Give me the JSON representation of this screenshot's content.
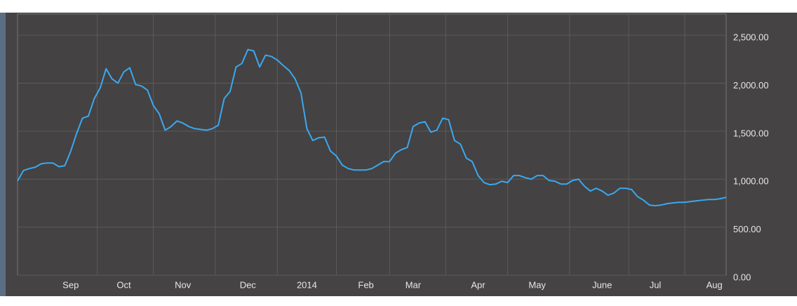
{
  "chart_data": {
    "type": "line",
    "categories": [
      null,
      null,
      null,
      null,
      null,
      null,
      null,
      null,
      null,
      "Sep",
      null,
      null,
      null,
      null,
      null,
      null,
      null,
      null,
      "Oct",
      null,
      null,
      null,
      null,
      null,
      null,
      null,
      null,
      null,
      "Nov",
      null,
      null,
      null,
      null,
      null,
      null,
      null,
      null,
      null,
      null,
      "Dec",
      null,
      null,
      null,
      null,
      null,
      null,
      null,
      null,
      null,
      "2014",
      null,
      null,
      null,
      null,
      null,
      null,
      null,
      null,
      null,
      "Feb",
      null,
      null,
      null,
      null,
      null,
      null,
      null,
      "Mar",
      null,
      null,
      null,
      null,
      null,
      null,
      null,
      null,
      null,
      null,
      "Apr",
      null,
      null,
      null,
      null,
      null,
      null,
      null,
      null,
      null,
      "May",
      null,
      null,
      null,
      null,
      null,
      null,
      null,
      null,
      null,
      null,
      "June",
      null,
      null,
      null,
      null,
      null,
      null,
      null,
      null,
      "Jul",
      null,
      null,
      null,
      null,
      null,
      null,
      null,
      null,
      null,
      "Aug",
      null,
      null
    ],
    "values": [
      980,
      1090,
      1110,
      1124,
      1160,
      1168,
      1168,
      1130,
      1140,
      1290,
      1475,
      1635,
      1657,
      1840,
      1950,
      2150,
      2045,
      2000,
      2117,
      2160,
      1985,
      1970,
      1927,
      1767,
      1680,
      1510,
      1548,
      1606,
      1584,
      1548,
      1526,
      1518,
      1510,
      1526,
      1562,
      1840,
      1913,
      2168,
      2205,
      2350,
      2336,
      2168,
      2292,
      2278,
      2240,
      2183,
      2132,
      2045,
      1898,
      1526,
      1402,
      1431,
      1438,
      1292,
      1241,
      1146,
      1110,
      1095,
      1095,
      1095,
      1110,
      1146,
      1183,
      1183,
      1270,
      1307,
      1329,
      1548,
      1584,
      1598,
      1489,
      1510,
      1635,
      1620,
      1402,
      1365,
      1219,
      1183,
      1037,
      964,
      942,
      949,
      978,
      964,
      1037,
      1037,
      1015,
      1000,
      1037,
      1037,
      986,
      978,
      949,
      949,
      986,
      1000,
      927,
      876,
      905,
      876,
      832,
      855,
      905,
      905,
      891,
      818,
      781,
      730,
      723,
      730,
      745,
      752,
      759,
      759,
      767,
      774,
      781,
      788,
      788,
      796,
      810
    ],
    "color": "#3aa8f0",
    "ylim": [
      0,
      2720
    ],
    "yticks": [
      {
        "value": 0,
        "label": "0.00"
      },
      {
        "value": 500,
        "label": "500.00"
      },
      {
        "value": 1000,
        "label": "1,000.00"
      },
      {
        "value": 1500,
        "label": "1,500.00"
      },
      {
        "value": 2000,
        "label": "2,000.00"
      },
      {
        "value": 2500,
        "label": "2,500.00"
      }
    ],
    "grid": true
  }
}
